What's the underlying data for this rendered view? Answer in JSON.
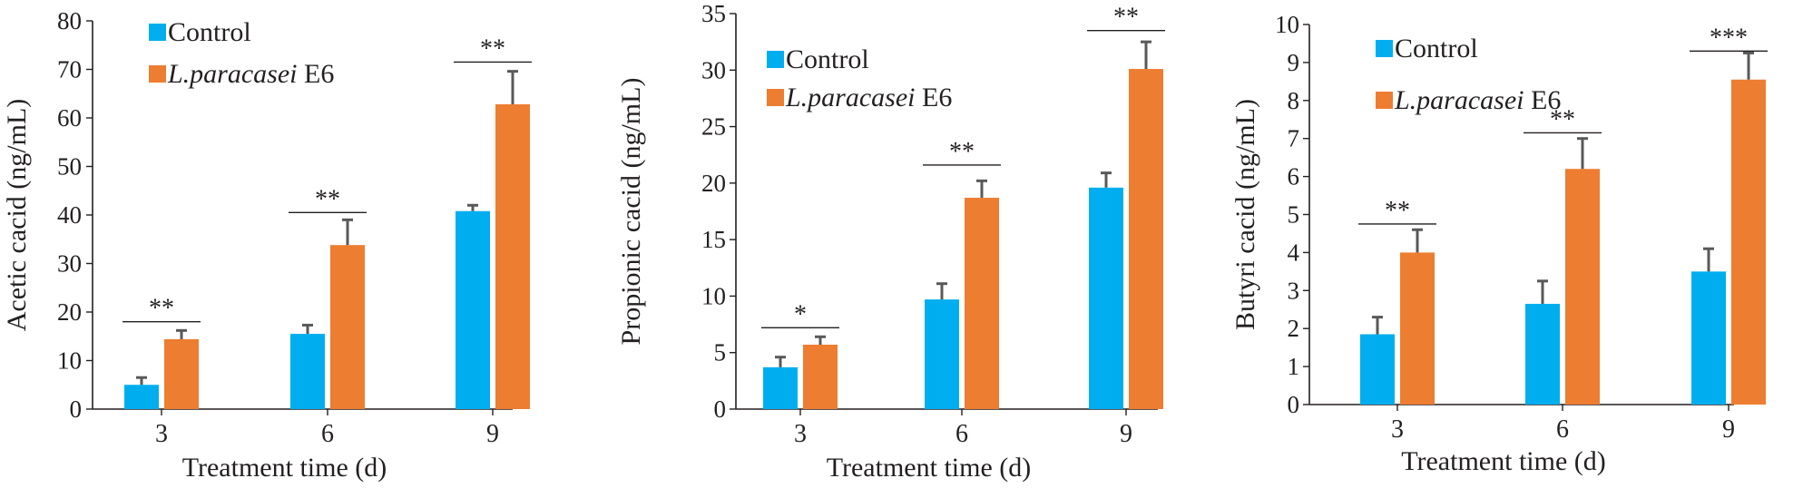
{
  "colors": {
    "control": "#00aeef",
    "treated": "#ed7d31",
    "axis": "#231f20",
    "error": "#595959"
  },
  "chart_data": [
    {
      "type": "bar",
      "xlabel": "Treatment time (d)",
      "ylabel": "Acetic cacid (ng/mL)",
      "ylim": [
        0,
        80
      ],
      "yticks": [
        0,
        10,
        20,
        30,
        40,
        50,
        60,
        70,
        80
      ],
      "categories": [
        "3",
        "6",
        "9"
      ],
      "grid": false,
      "legend_position": "top-left",
      "legend": [
        {
          "name": "Control"
        },
        {
          "name_italic": "L.paracasei",
          "name_rest": " E6"
        }
      ],
      "series": [
        {
          "name": "Control",
          "values": [
            5.0,
            15.5,
            40.8
          ],
          "errors": [
            1.5,
            1.8,
            1.2
          ]
        },
        {
          "name": "L.paracasei E6",
          "values": [
            14.4,
            33.8,
            62.8
          ],
          "errors": [
            1.8,
            5.2,
            6.8
          ]
        }
      ],
      "significance": [
        {
          "category": "3",
          "label": "**",
          "level": 18
        },
        {
          "category": "6",
          "label": "**",
          "level": 40.5
        },
        {
          "category": "9",
          "label": "**",
          "level": 71.5
        }
      ]
    },
    {
      "type": "bar",
      "xlabel": "Treatment time (d)",
      "ylabel": "Propionic cacid (ng/mL)",
      "ylim": [
        0,
        35
      ],
      "yticks": [
        0,
        5,
        10,
        15,
        20,
        25,
        30,
        35
      ],
      "categories": [
        "3",
        "6",
        "9"
      ],
      "grid": false,
      "legend_position": "top-left",
      "legend": [
        {
          "name": "Control"
        },
        {
          "name_italic": "L.paracasei",
          "name_rest": " E6"
        }
      ],
      "series": [
        {
          "name": "Control",
          "values": [
            3.7,
            9.7,
            19.6
          ],
          "errors": [
            0.9,
            1.4,
            1.3
          ]
        },
        {
          "name": "L.paracasei E6",
          "values": [
            5.7,
            18.7,
            30.1
          ],
          "errors": [
            0.7,
            1.5,
            2.4
          ]
        }
      ],
      "significance": [
        {
          "category": "3",
          "label": "*",
          "level": 7.2
        },
        {
          "category": "6",
          "label": "**",
          "level": 21.6
        },
        {
          "category": "9",
          "label": "**",
          "level": 33.5
        }
      ]
    },
    {
      "type": "bar",
      "xlabel": "Treatment time (d)",
      "ylabel": "Butyri cacid (ng/mL)",
      "ylim": [
        0,
        10
      ],
      "yticks": [
        0,
        1,
        2,
        3,
        4,
        5,
        6,
        7,
        8,
        9,
        10
      ],
      "categories": [
        "3",
        "6",
        "9"
      ],
      "grid": false,
      "legend_position": "top-left",
      "legend": [
        {
          "name": "Control"
        },
        {
          "name_italic": "L.paracasei",
          "name_rest": " E6"
        }
      ],
      "series": [
        {
          "name": "Control",
          "values": [
            1.85,
            2.65,
            3.5
          ],
          "errors": [
            0.45,
            0.6,
            0.6
          ]
        },
        {
          "name": "L.paracasei E6",
          "values": [
            4.0,
            6.2,
            8.55
          ],
          "errors": [
            0.6,
            0.8,
            0.7
          ]
        }
      ],
      "significance": [
        {
          "category": "3",
          "label": "**",
          "level": 4.75
        },
        {
          "category": "6",
          "label": "**",
          "level": 7.15
        },
        {
          "category": "9",
          "label": "***",
          "level": 9.3
        }
      ]
    }
  ]
}
